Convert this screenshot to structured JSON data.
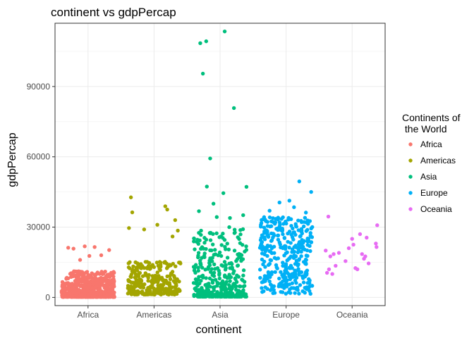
{
  "chart_data": {
    "type": "scatter",
    "title": "continent vs gdpPercap",
    "xlabel": "continent",
    "ylabel": "gdpPercap",
    "categories": [
      "Africa",
      "Americas",
      "Asia",
      "Europe",
      "Oceania"
    ],
    "ylim": [
      -3500,
      117000
    ],
    "yticks": [
      0,
      30000,
      60000,
      90000
    ],
    "ytick_labels": [
      "0",
      "30000",
      "60000",
      "90000"
    ],
    "grid": true,
    "jitter": true,
    "legend": {
      "title_line1": "Continents of",
      "title_line2": " the World",
      "placement": "right"
    },
    "colors": {
      "Africa": "#F8766D",
      "Americas": "#A3A500",
      "Asia": "#00BF7D",
      "Europe": "#00B0F6",
      "Oceania": "#E76BF3"
    },
    "series": [
      {
        "name": "Africa",
        "count": 624,
        "outliers": [
          [
            -0.3,
            21200
          ],
          [
            -0.22,
            20800
          ],
          [
            -0.05,
            21800
          ],
          [
            0.1,
            21500
          ],
          [
            0.2,
            18000
          ],
          [
            0.32,
            20200
          ],
          [
            0.02,
            17700
          ],
          [
            -0.12,
            16000
          ]
        ]
      },
      {
        "name": "Americas",
        "count": 300,
        "outliers": [
          [
            -0.35,
            42700
          ],
          [
            -0.33,
            36300
          ],
          [
            -0.38,
            29600
          ],
          [
            0.17,
            38900
          ],
          [
            0.2,
            37500
          ],
          [
            0.32,
            33000
          ],
          [
            -0.15,
            29000
          ],
          [
            0.28,
            26000
          ],
          [
            0.05,
            31000
          ],
          [
            0.36,
            28500
          ]
        ]
      },
      {
        "name": "Asia",
        "count": 396,
        "outliers": [
          [
            -0.3,
            108500
          ],
          [
            -0.21,
            109300
          ],
          [
            0.07,
            113500
          ],
          [
            -0.26,
            95500
          ],
          [
            0.21,
            80800
          ],
          [
            -0.15,
            59300
          ],
          [
            -0.2,
            47300
          ],
          [
            0.4,
            47200
          ],
          [
            -0.32,
            36800
          ],
          [
            0.35,
            35100
          ],
          [
            -0.1,
            40000
          ],
          [
            0.05,
            44500
          ],
          [
            -0.05,
            34300
          ],
          [
            0.15,
            33900
          ]
        ]
      },
      {
        "name": "Europe",
        "count": 360,
        "outliers": [
          [
            0.2,
            49500
          ],
          [
            0.38,
            45000
          ],
          [
            0.05,
            41300
          ],
          [
            -0.1,
            40500
          ],
          [
            0.12,
            38500
          ],
          [
            -0.25,
            37000
          ],
          [
            0.3,
            36200
          ]
        ]
      },
      {
        "name": "Oceania",
        "count": 24,
        "points": [
          [
            -0.36,
            34500
          ],
          [
            -0.4,
            20000
          ],
          [
            -0.33,
            17500
          ],
          [
            -0.28,
            18500
          ],
          [
            -0.2,
            19000
          ],
          [
            -0.35,
            12000
          ],
          [
            -0.38,
            10500
          ],
          [
            -0.3,
            10000
          ],
          [
            -0.25,
            13500
          ],
          [
            -0.1,
            15500
          ],
          [
            -0.05,
            21000
          ],
          [
            0.0,
            25000
          ],
          [
            0.02,
            22500
          ],
          [
            0.05,
            12500
          ],
          [
            0.08,
            12000
          ],
          [
            0.12,
            27000
          ],
          [
            0.15,
            18500
          ],
          [
            0.2,
            17500
          ],
          [
            0.22,
            25500
          ],
          [
            0.18,
            16500
          ],
          [
            0.25,
            14500
          ],
          [
            0.38,
            30800
          ],
          [
            0.36,
            23000
          ],
          [
            0.37,
            21500
          ]
        ]
      }
    ]
  }
}
